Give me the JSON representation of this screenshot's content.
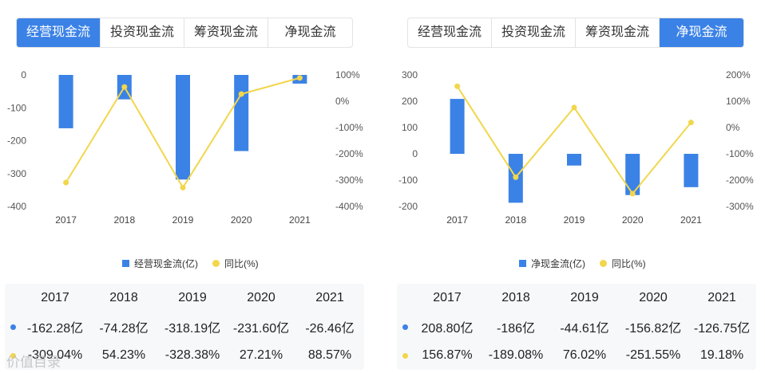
{
  "left": {
    "tabs": [
      "经营现金流",
      "投资现金流",
      "筹资现金流",
      "净现金流"
    ],
    "active_tab": 0,
    "legend": [
      "经营现金流(亿)",
      "同比(%)"
    ],
    "table": {
      "years": [
        "2017",
        "2018",
        "2019",
        "2020",
        "2021"
      ],
      "row_values": [
        "-162.28亿",
        "-74.28亿",
        "-318.19亿",
        "-231.60亿",
        "-26.46亿"
      ],
      "row_growth": [
        "-309.04%",
        "54.23%",
        "-328.38%",
        "27.21%",
        "88.57%"
      ]
    }
  },
  "right": {
    "tabs": [
      "经营现金流",
      "投资现金流",
      "筹资现金流",
      "净现金流"
    ],
    "active_tab": 3,
    "legend": [
      "净现金流(亿)",
      "同比(%)"
    ],
    "table": {
      "years": [
        "2017",
        "2018",
        "2019",
        "2020",
        "2021"
      ],
      "row_values": [
        "208.80亿",
        "-186亿",
        "-44.61亿",
        "-156.82亿",
        "-126.75亿"
      ],
      "row_growth": [
        "156.87%",
        "-189.08%",
        "76.02%",
        "-251.55%",
        "19.18%"
      ]
    }
  },
  "watermark": "价值目录",
  "chart_data": [
    {
      "type": "bar",
      "categories": [
        "2017",
        "2018",
        "2019",
        "2020",
        "2021"
      ],
      "series": [
        {
          "name": "经营现金流(亿)",
          "type": "bar",
          "axis": "left",
          "values": [
            -162.28,
            -74.28,
            -318.19,
            -231.6,
            -26.46
          ]
        },
        {
          "name": "同比(%)",
          "type": "line",
          "axis": "right",
          "values": [
            -309.04,
            54.23,
            -328.38,
            27.21,
            88.57
          ]
        }
      ],
      "y_left": {
        "range": [
          -400,
          0
        ],
        "ticks": [
          0,
          -100,
          -200,
          -300,
          -400
        ],
        "tick_labels": [
          "0",
          "-100",
          "-200",
          "-300",
          "-400"
        ]
      },
      "y_right": {
        "range": [
          -400,
          100
        ],
        "ticks": [
          100,
          0,
          -100,
          -200,
          -300,
          -400
        ],
        "tick_labels": [
          "100%",
          "0%",
          "-100%",
          "-200%",
          "-300%",
          "-400%"
        ]
      },
      "colors": {
        "bar": "#3b82e6",
        "line": "#f2d64b"
      },
      "grid": false,
      "legend_position": "bottom"
    },
    {
      "type": "bar",
      "categories": [
        "2017",
        "2018",
        "2019",
        "2020",
        "2021"
      ],
      "series": [
        {
          "name": "净现金流(亿)",
          "type": "bar",
          "axis": "left",
          "values": [
            208.8,
            -186,
            -44.61,
            -156.82,
            -126.75
          ]
        },
        {
          "name": "同比(%)",
          "type": "line",
          "axis": "right",
          "values": [
            156.87,
            -189.08,
            76.02,
            -251.55,
            19.18
          ]
        }
      ],
      "y_left": {
        "range": [
          -200,
          300
        ],
        "ticks": [
          300,
          200,
          100,
          0,
          -100,
          -200
        ],
        "tick_labels": [
          "300",
          "200",
          "100",
          "0",
          "-100",
          "-200"
        ]
      },
      "y_right": {
        "range": [
          -300,
          200
        ],
        "ticks": [
          200,
          100,
          0,
          -100,
          -200,
          -300
        ],
        "tick_labels": [
          "200%",
          "100%",
          "0%",
          "-100%",
          "-200%",
          "-300%"
        ]
      },
      "colors": {
        "bar": "#3b82e6",
        "line": "#f2d64b"
      },
      "grid": false,
      "legend_position": "bottom"
    }
  ]
}
